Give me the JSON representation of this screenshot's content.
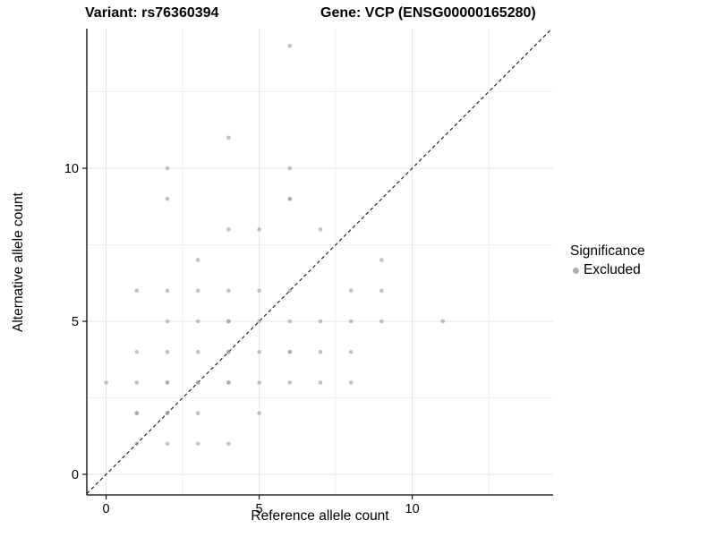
{
  "header": {
    "variant_title": "Variant: rs76360394",
    "gene_title": "Gene: VCP (ENSG00000165280)"
  },
  "legend": {
    "title": "Significance",
    "items": [
      {
        "label": "Excluded",
        "color": "#9a9a9a"
      }
    ]
  },
  "colors": {
    "background": "#ffffff",
    "grid_major": "#e4e4e4",
    "grid_minor": "#f1f1f1",
    "axis": "#000000",
    "text": "#000000",
    "point": "#9a9a9a",
    "identity_line": "#1a1a1a"
  },
  "chart_data": {
    "type": "scatter",
    "titles": [
      "Variant: rs76360394",
      "Gene: VCP (ENSG00000165280)"
    ],
    "xlabel": "Reference allele count",
    "ylabel": "Alternative allele count",
    "x": {
      "ticks": [
        0,
        5,
        10
      ],
      "minor": [
        2.5,
        7.5,
        12.5
      ],
      "range": [
        -0.63,
        14.6
      ]
    },
    "y": {
      "ticks": [
        0,
        5,
        10
      ],
      "minor": [
        2.5,
        7.5,
        12.5
      ],
      "range": [
        -0.67,
        14.56
      ]
    },
    "grid": true,
    "legend_position": "right",
    "identity_line": {
      "style": "dashed",
      "slope": 1,
      "intercept": 0
    },
    "series": [
      {
        "name": "Excluded",
        "color": "#9a9a9a",
        "marker": "circle",
        "marker_opacity": 0.6,
        "points": [
          [
            0,
            3
          ],
          [
            1,
            1
          ],
          [
            1,
            2
          ],
          [
            1,
            3
          ],
          [
            1,
            4
          ],
          [
            1,
            6
          ],
          [
            2,
            1
          ],
          [
            2,
            2
          ],
          [
            2,
            3
          ],
          [
            2,
            4
          ],
          [
            2,
            5
          ],
          [
            2,
            6
          ],
          [
            2,
            9
          ],
          [
            2,
            10
          ],
          [
            3,
            1
          ],
          [
            3,
            2
          ],
          [
            3,
            3
          ],
          [
            3,
            4
          ],
          [
            3,
            5
          ],
          [
            3,
            6
          ],
          [
            3,
            7
          ],
          [
            4,
            1
          ],
          [
            4,
            3
          ],
          [
            4,
            4
          ],
          [
            4,
            5
          ],
          [
            4,
            6
          ],
          [
            4,
            8
          ],
          [
            4,
            11
          ],
          [
            5,
            2
          ],
          [
            5,
            3
          ],
          [
            5,
            4
          ],
          [
            5,
            5
          ],
          [
            5,
            6
          ],
          [
            5,
            8
          ],
          [
            6,
            3
          ],
          [
            6,
            4
          ],
          [
            6,
            5
          ],
          [
            6,
            6
          ],
          [
            6,
            9
          ],
          [
            6,
            10
          ],
          [
            6,
            14
          ],
          [
            7,
            3
          ],
          [
            7,
            4
          ],
          [
            7,
            5
          ],
          [
            7,
            8
          ],
          [
            8,
            3
          ],
          [
            8,
            4
          ],
          [
            8,
            5
          ],
          [
            8,
            6
          ],
          [
            9,
            5
          ],
          [
            9,
            6
          ],
          [
            9,
            7
          ],
          [
            11,
            5
          ]
        ],
        "overplotted_points_darker": [
          [
            1,
            2
          ],
          [
            2,
            2
          ],
          [
            2,
            3
          ],
          [
            3,
            3
          ],
          [
            4,
            3
          ],
          [
            4,
            4
          ],
          [
            4,
            5
          ],
          [
            6,
            4
          ],
          [
            6,
            9
          ]
        ]
      }
    ]
  }
}
